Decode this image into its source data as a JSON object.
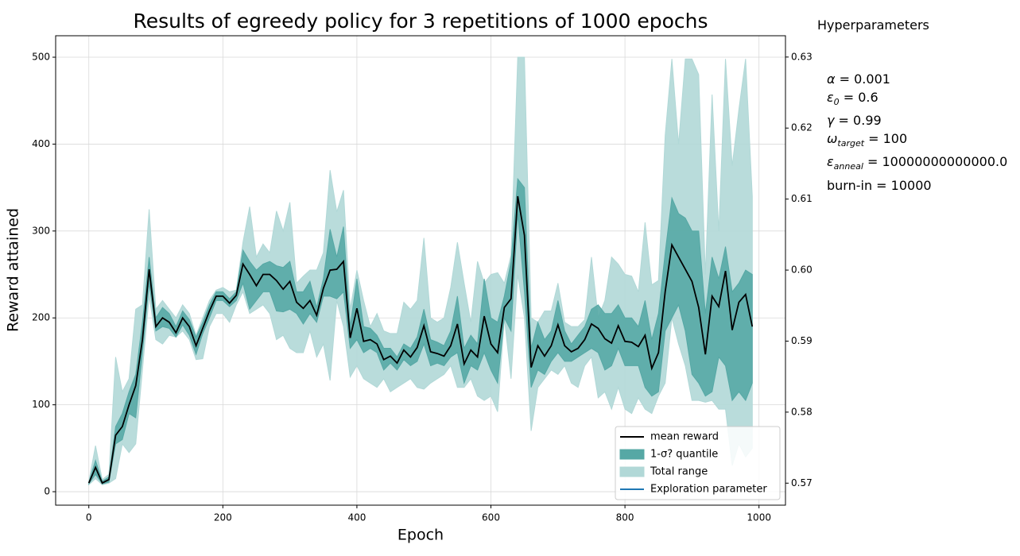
{
  "chart_data": {
    "type": "line",
    "title": "Results of egreedy policy for 3 repetitions of 1000 epochs",
    "xlabel": "Epoch",
    "ylabel": "Reward attained",
    "x": [
      0,
      10,
      20,
      30,
      40,
      50,
      60,
      70,
      80,
      90,
      100,
      110,
      120,
      130,
      140,
      150,
      160,
      170,
      180,
      190,
      200,
      210,
      220,
      230,
      240,
      250,
      260,
      270,
      280,
      290,
      300,
      310,
      320,
      330,
      340,
      350,
      360,
      370,
      380,
      390,
      400,
      410,
      420,
      430,
      440,
      450,
      460,
      470,
      480,
      490,
      500,
      510,
      520,
      530,
      540,
      550,
      560,
      570,
      580,
      590,
      600,
      610,
      620,
      630,
      640,
      650,
      660,
      670,
      680,
      690,
      700,
      710,
      720,
      730,
      740,
      750,
      760,
      770,
      780,
      790,
      800,
      810,
      820,
      830,
      840,
      850,
      860,
      870,
      880,
      890,
      900,
      910,
      920,
      930,
      940,
      950,
      960,
      970,
      980,
      990
    ],
    "series": [
      {
        "name": "mean reward",
        "color": "#000000",
        "kind": "line",
        "values": [
          10,
          28,
          10,
          14,
          65,
          75,
          100,
          122,
          175,
          256,
          190,
          200,
          195,
          183,
          200,
          190,
          168,
          188,
          208,
          225,
          225,
          217,
          226,
          262,
          250,
          237,
          250,
          250,
          243,
          233,
          242,
          218,
          211,
          220,
          203,
          234,
          255,
          256,
          265,
          177,
          211,
          173,
          175,
          170,
          152,
          156,
          148,
          163,
          155,
          166,
          191,
          161,
          159,
          156,
          168,
          193,
          147,
          163,
          155,
          202,
          170,
          160,
          212,
          222,
          340,
          295,
          143,
          168,
          156,
          168,
          192,
          168,
          161,
          165,
          175,
          193,
          188,
          176,
          171,
          191,
          173,
          172,
          167,
          180,
          142,
          160,
          230,
          284,
          270,
          256,
          242,
          212,
          158,
          225,
          213,
          254,
          186,
          218,
          227,
          190
        ]
      },
      {
        "name": "1-σ? quantile",
        "color": "#56a8a5",
        "kind": "band",
        "lower": [
          9,
          20,
          9,
          11,
          55,
          60,
          90,
          85,
          160,
          240,
          185,
          190,
          188,
          178,
          192,
          180,
          158,
          182,
          200,
          220,
          220,
          213,
          220,
          240,
          210,
          220,
          230,
          230,
          208,
          207,
          210,
          205,
          193,
          205,
          195,
          225,
          225,
          222,
          230,
          165,
          175,
          160,
          165,
          160,
          140,
          148,
          140,
          152,
          145,
          150,
          170,
          145,
          148,
          145,
          155,
          160,
          125,
          145,
          140,
          160,
          140,
          125,
          200,
          185,
          320,
          230,
          120,
          140,
          135,
          150,
          160,
          150,
          150,
          155,
          160,
          165,
          160,
          140,
          145,
          165,
          145,
          145,
          145,
          120,
          110,
          115,
          185,
          200,
          215,
          185,
          135,
          125,
          110,
          115,
          155,
          145,
          105,
          115,
          105,
          125
        ],
        "upper": [
          11,
          36,
          12,
          17,
          75,
          90,
          115,
          135,
          195,
          270,
          200,
          212,
          205,
          190,
          208,
          198,
          178,
          195,
          215,
          230,
          230,
          222,
          230,
          278,
          265,
          255,
          262,
          265,
          260,
          258,
          265,
          230,
          230,
          242,
          212,
          245,
          302,
          270,
          305,
          190,
          245,
          190,
          188,
          180,
          165,
          165,
          155,
          170,
          165,
          178,
          210,
          175,
          172,
          168,
          185,
          225,
          165,
          180,
          170,
          245,
          200,
          195,
          225,
          265,
          360,
          350,
          165,
          195,
          175,
          185,
          220,
          185,
          170,
          180,
          190,
          210,
          215,
          205,
          205,
          215,
          200,
          200,
          190,
          220,
          175,
          205,
          275,
          338,
          320,
          315,
          300,
          300,
          205,
          270,
          245,
          282,
          230,
          240,
          255,
          250
        ]
      },
      {
        "name": "Total range",
        "color": "#b1d8d7",
        "kind": "band",
        "lower": [
          8,
          15,
          8,
          10,
          15,
          55,
          45,
          55,
          140,
          225,
          175,
          170,
          180,
          178,
          185,
          175,
          152,
          153,
          190,
          205,
          205,
          195,
          215,
          230,
          205,
          210,
          215,
          205,
          175,
          180,
          165,
          160,
          160,
          185,
          155,
          170,
          128,
          220,
          190,
          132,
          145,
          130,
          125,
          120,
          130,
          115,
          120,
          125,
          130,
          120,
          118,
          125,
          130,
          135,
          145,
          120,
          120,
          130,
          110,
          105,
          110,
          92,
          200,
          130,
          250,
          200,
          70,
          120,
          130,
          140,
          135,
          145,
          125,
          120,
          145,
          155,
          108,
          115,
          95,
          120,
          95,
          90,
          108,
          95,
          90,
          110,
          125,
          200,
          170,
          145,
          105,
          105,
          103,
          105,
          95,
          95,
          30,
          55,
          40,
          50
        ],
        "upper": [
          12,
          53,
          14,
          20,
          155,
          115,
          130,
          210,
          215,
          325,
          210,
          220,
          210,
          200,
          215,
          205,
          180,
          200,
          220,
          232,
          235,
          230,
          232,
          287,
          328,
          270,
          285,
          275,
          323,
          300,
          333,
          240,
          248,
          255,
          255,
          275,
          370,
          322,
          347,
          210,
          255,
          220,
          190,
          205,
          185,
          182,
          182,
          218,
          210,
          220,
          292,
          200,
          195,
          200,
          235,
          287,
          240,
          195,
          265,
          240,
          250,
          252,
          240,
          272,
          500,
          500,
          200,
          195,
          208,
          208,
          240,
          195,
          190,
          190,
          198,
          270,
          200,
          220,
          270,
          262,
          250,
          248,
          230,
          310,
          238,
          243,
          410,
          498,
          400,
          498,
          498,
          480,
          250,
          457,
          300,
          498,
          375,
          440,
          498,
          340
        ]
      },
      {
        "name": "Exploration parameter",
        "color": "#1f77b4",
        "kind": "line",
        "axis": "y2"
      }
    ],
    "xlim": [
      -49.5,
      1039.5
    ],
    "xticks": [
      0,
      200,
      400,
      600,
      800,
      1000
    ],
    "ylim": [
      -15.5,
      524.7
    ],
    "yticks": [
      0,
      100,
      200,
      300,
      400,
      500
    ],
    "y2lim": [
      0.5669,
      0.633
    ],
    "y2ticks": [
      0.57,
      0.58,
      0.59,
      {
        "value": 0.6,
        "label": "0.60"
      },
      0.61,
      0.62,
      0.63
    ],
    "grid": true,
    "legend": "lower right",
    "hyperparameters": {
      "title": "Hyperparameters",
      "items": [
        {
          "symbol": "α",
          "value": " = 0.001"
        },
        {
          "symbol": "ε",
          "sub": "0",
          "value": " = 0.6"
        },
        {
          "symbol": "γ",
          "value": " = 0.99"
        },
        {
          "symbol": "ω",
          "sub": "target",
          "value": " = 100"
        },
        {
          "symbol": "ε",
          "sub": "anneal",
          "value": " = 10000000000000.0"
        },
        {
          "symbol": "burn-in",
          "value": " = 10000"
        }
      ]
    }
  }
}
